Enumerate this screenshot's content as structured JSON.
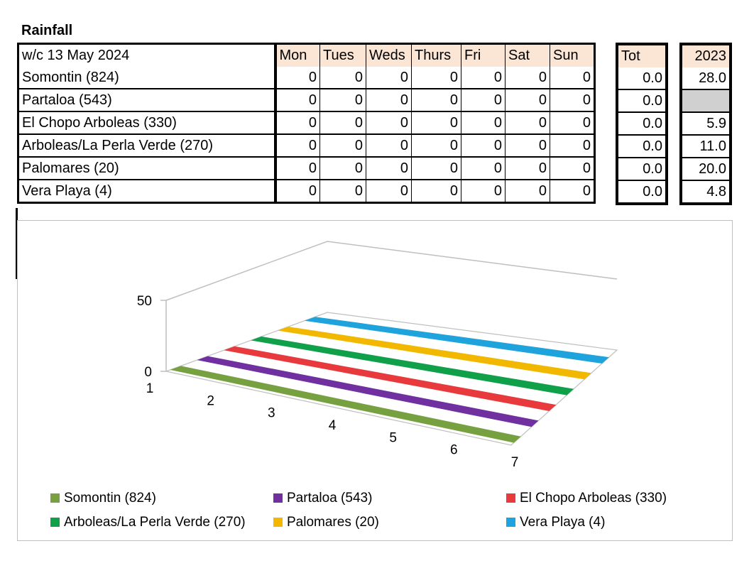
{
  "title": "Rainfall",
  "header": {
    "week_label": "w/c  13 May 2024",
    "days": [
      "Mon",
      "Tues",
      "Weds",
      "Thurs",
      "Fri",
      "Sat",
      "Sun"
    ],
    "total_label": "Tot",
    "year_label": "2023"
  },
  "rows": [
    {
      "name": "Somontin (824)",
      "days": [
        "0",
        "0",
        "0",
        "0",
        "0",
        "0",
        "0"
      ],
      "total": "0.0",
      "year": "28.0"
    },
    {
      "name": "Partaloa (543)",
      "days": [
        "0",
        "0",
        "0",
        "0",
        "0",
        "0",
        "0"
      ],
      "total": "0.0",
      "year": ""
    },
    {
      "name": "El Chopo Arboleas (330)",
      "days": [
        "0",
        "0",
        "0",
        "0",
        "0",
        "0",
        "0"
      ],
      "total": "0.0",
      "year": "5.9"
    },
    {
      "name": "Arboleas/La Perla Verde (270)",
      "days": [
        "0",
        "0",
        "0",
        "0",
        "0",
        "0",
        "0"
      ],
      "total": "0.0",
      "year": "11.0"
    },
    {
      "name": "Palomares (20)",
      "days": [
        "0",
        "0",
        "0",
        "0",
        "0",
        "0",
        "0"
      ],
      "total": "0.0",
      "year": "20.0"
    },
    {
      "name": "Vera Playa (4)",
      "days": [
        "0",
        "0",
        "0",
        "0",
        "0",
        "0",
        "0"
      ],
      "total": "0.0",
      "year": "4.8"
    }
  ],
  "chart_data": {
    "type": "area",
    "is_3d": true,
    "x": [
      1,
      2,
      3,
      4,
      5,
      6,
      7
    ],
    "z_ticks": [
      "0",
      "50"
    ],
    "zlim": [
      0,
      50
    ],
    "series": [
      {
        "name": "Somontin (824)",
        "values": [
          0,
          0,
          0,
          0,
          0,
          0,
          0
        ],
        "color": "#77a140"
      },
      {
        "name": "Partaloa (543)",
        "values": [
          0,
          0,
          0,
          0,
          0,
          0,
          0
        ],
        "color": "#7030a0"
      },
      {
        "name": "El Chopo Arboleas (330)",
        "values": [
          0,
          0,
          0,
          0,
          0,
          0,
          0
        ],
        "color": "#e8393c"
      },
      {
        "name": "Arboleas/La Perla Verde (270)",
        "values": [
          0,
          0,
          0,
          0,
          0,
          0,
          0
        ],
        "color": "#11a04a"
      },
      {
        "name": "Palomares (20)",
        "values": [
          0,
          0,
          0,
          0,
          0,
          0,
          0
        ],
        "color": "#f2b800"
      },
      {
        "name": "Vera Playa (4)",
        "values": [
          0,
          0,
          0,
          0,
          0,
          0,
          0
        ],
        "color": "#1ea3dc"
      }
    ],
    "legend_position": "bottom",
    "grid": true
  }
}
